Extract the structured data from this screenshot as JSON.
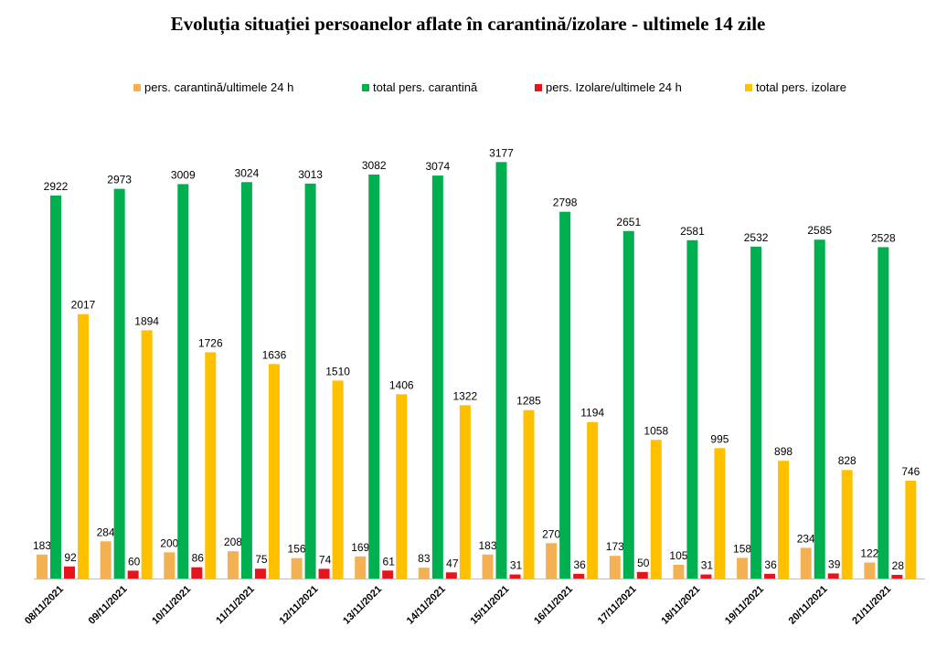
{
  "chart_data": {
    "type": "bar",
    "title": "Evoluția situației persoanelor aflate în carantină/izolare - ultimele 14 zile",
    "categories": [
      "08/11/2021",
      "09/11/2021",
      "10/11/2021",
      "11/11/2021",
      "12/11/2021",
      "13/11/2021",
      "14/11/2021",
      "15/11/2021",
      "16/11/2021",
      "17/11/2021",
      "18/11/2021",
      "19/11/2021",
      "20/11/2021",
      "21/11/2021"
    ],
    "series": [
      {
        "name": "pers. carantină/ultimele 24 h",
        "color": "#F4B153",
        "values": [
          183,
          284,
          200,
          208,
          156,
          169,
          83,
          183,
          270,
          173,
          105,
          158,
          234,
          122
        ]
      },
      {
        "name": "total pers. carantină",
        "color": "#00B050",
        "values": [
          2922,
          2973,
          3009,
          3024,
          3013,
          3082,
          3074,
          3177,
          2798,
          2651,
          2581,
          2532,
          2585,
          2528
        ]
      },
      {
        "name": "pers. Izolare/ultimele 24 h",
        "color": "#E8141C",
        "values": [
          92,
          60,
          86,
          75,
          74,
          61,
          47,
          31,
          36,
          50,
          31,
          36,
          39,
          28
        ]
      },
      {
        "name": "total pers. izolare",
        "color": "#FFC000",
        "values": [
          2017,
          1894,
          1726,
          1636,
          1510,
          1406,
          1322,
          1285,
          1194,
          1058,
          995,
          898,
          828,
          746
        ]
      }
    ],
    "xlabel": "",
    "ylabel": "",
    "ylim": [
      0,
      3500
    ],
    "grid": false,
    "legend_position": "top",
    "axis_color": "#bfbfbf"
  }
}
